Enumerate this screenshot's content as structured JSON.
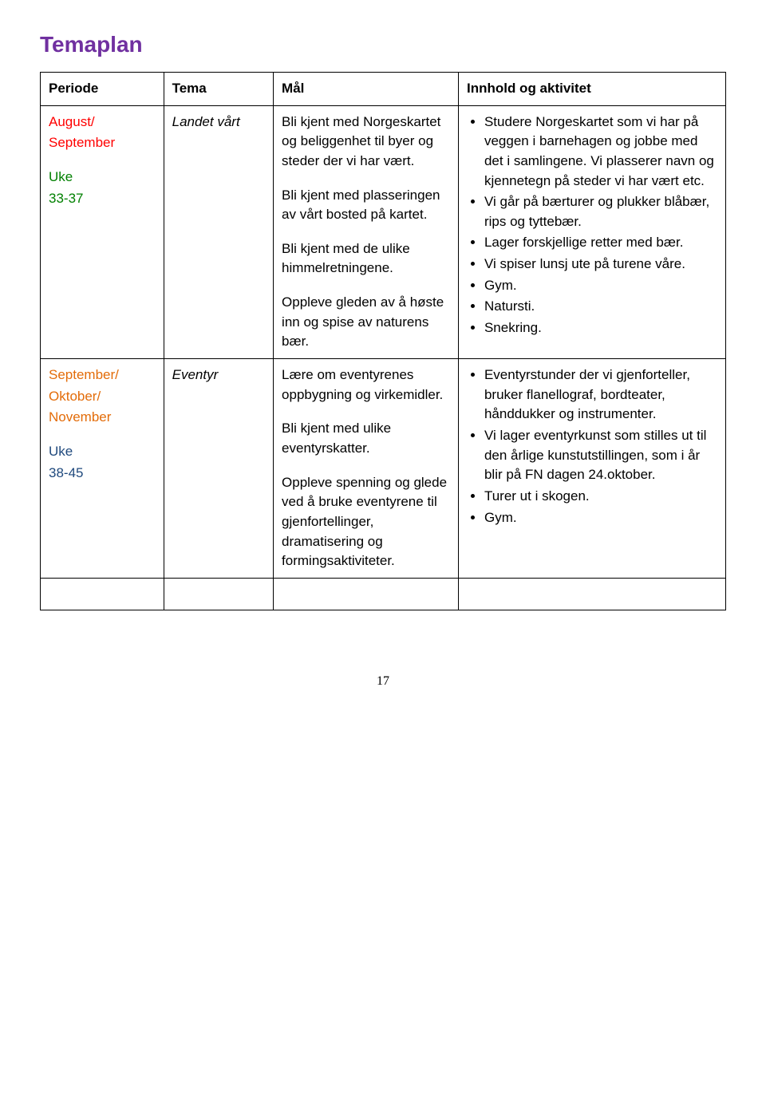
{
  "title": "Temaplan",
  "colors": {
    "title": "#7030a0",
    "red": "#ff0000",
    "green": "#008000",
    "orange": "#e36c09",
    "blue": "#1f497d",
    "border": "#000000"
  },
  "headers": {
    "periode": "Periode",
    "tema": "Tema",
    "mal": "Mål",
    "innhold": "Innhold og aktivitet"
  },
  "row1": {
    "periode": {
      "l1a": "August/",
      "l1b": "September",
      "l2a": "Uke",
      "l2b": "33-37"
    },
    "tema": "Landet vårt",
    "mal": {
      "p1": "Bli kjent med Norgeskartet og beliggenhet til byer og steder der vi har vært.",
      "p2": "Bli kjent med plasseringen av vårt bosted på kartet.",
      "p3": "Bli kjent med de ulike himmelretningene.",
      "p4": "Oppleve gleden av å høste inn og spise av naturens bær."
    },
    "innhold": {
      "i1": "Studere Norgeskartet som vi har på veggen i barnehagen og jobbe med det i samlingene. Vi plasserer navn og kjennetegn på steder vi har vært etc.",
      "i2": "Vi går på bærturer og plukker blåbær, rips og tyttebær.",
      "i3": "Lager forskjellige retter med bær.",
      "i4": "Vi spiser lunsj ute på turene våre.",
      "i5": "Gym.",
      "i6": "Natursti.",
      "i7": "Snekring."
    }
  },
  "row2": {
    "periode": {
      "l1a": "September/",
      "l1b": "Oktober/",
      "l1c": "November",
      "l2a": "Uke",
      "l2b": "38-45"
    },
    "tema": "Eventyr",
    "mal": {
      "p1": "Lære om eventyrenes oppbygning og virkemidler.",
      "p2": "Bli kjent med ulike eventyrskatter.",
      "p3": "Oppleve spenning og glede ved å bruke eventyrene til gjenfortellinger, dramatisering og formingsaktiviteter."
    },
    "innhold": {
      "i1": "Eventyrstunder der vi gjenforteller, bruker flanellograf, bordteater, hånddukker og instrumenter.",
      "i2": "Vi lager eventyrkunst som stilles ut til den årlige kunstutstillingen, som i år blir på FN dagen 24.oktober.",
      "i3": "Turer ut i skogen.",
      "i4": "Gym."
    }
  },
  "pageNumber": "17"
}
